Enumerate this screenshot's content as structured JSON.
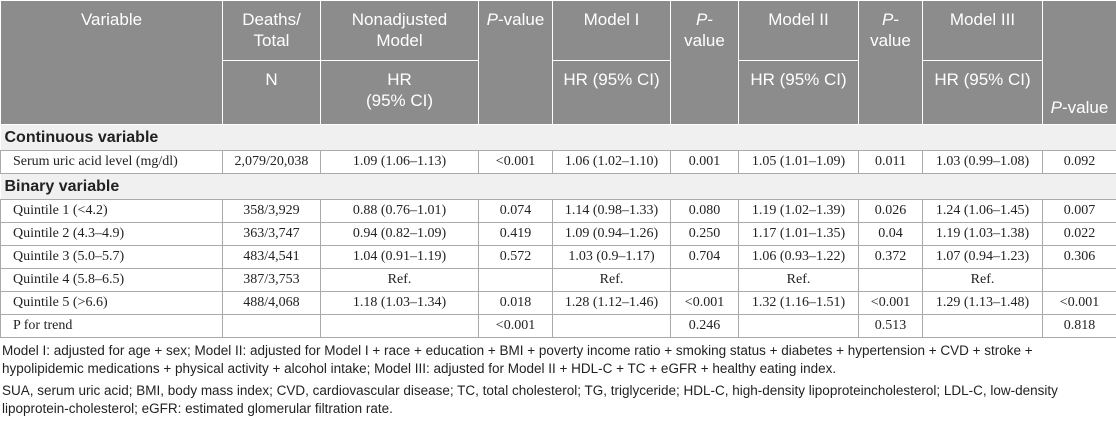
{
  "table": {
    "header": {
      "variable": "Variable",
      "deaths_total": "Deaths/\nTotal",
      "n": "N",
      "models": [
        {
          "name": "Nonadjusted\nModel",
          "hr": "HR\n(95% CI)",
          "p_italic": "P",
          "p_rest": "-value"
        },
        {
          "name": "Model I",
          "hr": "HR (95% CI)",
          "p_italic": "P",
          "p_rest": "-\nvalue"
        },
        {
          "name": "Model II",
          "hr": "HR (95% CI)",
          "p_italic": "P",
          "p_rest": "-\nvalue"
        },
        {
          "name": "Model III",
          "hr": "HR (95% CI)",
          "p_italic": "P",
          "p_rest": "-value"
        }
      ]
    },
    "sections": [
      {
        "title": "Continuous variable",
        "rows": [
          [
            "Serum uric acid level (mg/dl)",
            "2,079/20,038",
            "1.09 (1.06–1.13)",
            "<0.001",
            "1.06 (1.02–1.10)",
            "0.001",
            "1.05 (1.01–1.09)",
            "0.011",
            "1.03 (0.99–1.08)",
            "0.092"
          ]
        ]
      },
      {
        "title": "Binary variable",
        "rows": [
          [
            "Quintile 1 (<4.2)",
            "358/3,929",
            "0.88 (0.76–1.01)",
            "0.074",
            "1.14 (0.98–1.33)",
            "0.080",
            "1.19 (1.02–1.39)",
            "0.026",
            "1.24 (1.06–1.45)",
            "0.007"
          ],
          [
            "Quintile 2 (4.3–4.9)",
            "363/3,747",
            "0.94 (0.82–1.09)",
            "0.419",
            "1.09 (0.94–1.26)",
            "0.250",
            "1.17 (1.01–1.35)",
            "0.04",
            "1.19 (1.03–1.38)",
            "0.022"
          ],
          [
            "Quintile 3 (5.0–5.7)",
            "483/4,541",
            "1.04 (0.91–1.19)",
            "0.572",
            "1.03 (0.9–1.17)",
            "0.704",
            "1.06 (0.93–1.22)",
            "0.372",
            "1.07 (0.94–1.23)",
            "0.306"
          ],
          [
            "Quintile 4 (5.8–6.5)",
            "387/3,753",
            "Ref.",
            null,
            "Ref.",
            null,
            "Ref.",
            null,
            "Ref.",
            null
          ],
          [
            "Quintile 5 (>6.6)",
            "488/4,068",
            "1.18 (1.03–1.34)",
            "0.018",
            "1.28 (1.12–1.46)",
            "<0.001",
            "1.32 (1.16–1.51)",
            "<0.001",
            "1.29 (1.13–1.48)",
            "<0.001"
          ],
          [
            "P for trend",
            null,
            null,
            "<0.001",
            null,
            "0.246",
            null,
            "0.513",
            null,
            "0.818"
          ]
        ]
      }
    ]
  },
  "footnotes": [
    "Model I: adjusted for age + sex; Model II: adjusted for Model I + race + education + BMI + poverty income ratio + smoking status + diabetes + hypertension + CVD + stroke + hypolipidemic medications + physical activity + alcohol intake; Model III: adjusted for Model II + HDL-C + TC + eGFR + healthy eating index.",
    "SUA, serum uric acid; BMI, body mass index; CVD, cardiovascular disease; TC, total cholesterol; TG, triglyceride; HDL-C, high-density lipoproteincholesterol; LDL-C, low-density lipoprotein-cholesterol; eGFR: estimated glomerular filtration rate."
  ]
}
